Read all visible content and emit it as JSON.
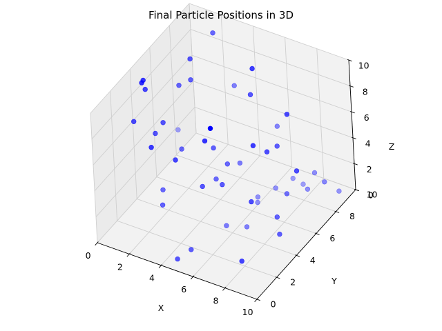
{
  "chart_data": {
    "type": "scatter",
    "title": "Final Particle Positions in 3D",
    "xlabel": "X",
    "ylabel": "Y",
    "zlabel": "Z",
    "xlim": [
      0,
      10
    ],
    "ylim": [
      0,
      10
    ],
    "zlim": [
      0,
      10
    ],
    "xticks": [
      "0",
      "2",
      "4",
      "6",
      "8",
      "10"
    ],
    "yticks": [
      "0",
      "2",
      "4",
      "6",
      "8",
      "10"
    ],
    "zticks": [
      "0",
      "2",
      "4",
      "6",
      "8",
      "10"
    ],
    "grid": true,
    "marker_color": "#0000ff",
    "points": [
      [
        0.6,
        3.2,
        6.9
      ],
      [
        0.7,
        4.3,
        8.5
      ],
      [
        0.8,
        4.0,
        9.5
      ],
      [
        0.9,
        3.7,
        9.6
      ],
      [
        1.6,
        3.7,
        6.0
      ],
      [
        1.8,
        4.2,
        6.5
      ],
      [
        2.0,
        6.8,
        9.3
      ],
      [
        1.6,
        6.2,
        7.6
      ],
      [
        2.1,
        6.6,
        7.9
      ],
      [
        2.5,
        2.8,
        2.8
      ],
      [
        2.9,
        2.1,
        2.4
      ],
      [
        3.4,
        2.8,
        5.5
      ],
      [
        2.7,
        4.5,
        4.6
      ],
      [
        1.0,
        6.8,
        3.4
      ],
      [
        2.3,
        2.2,
        6.5
      ],
      [
        3.6,
        8.5,
        6.5
      ],
      [
        4.4,
        5.0,
        5.0
      ],
      [
        4.7,
        3.3,
        3.6
      ],
      [
        4.8,
        4.5,
        3.2
      ],
      [
        5.5,
        4.0,
        3.5
      ],
      [
        2.2,
        8.8,
        9.7
      ],
      [
        5.6,
        7.3,
        9.7
      ],
      [
        6.0,
        2.4,
        9.4
      ],
      [
        4.8,
        3.6,
        6.9
      ],
      [
        5.3,
        6.1,
        3.3
      ],
      [
        6.2,
        6.3,
        0.9
      ],
      [
        5.1,
        5.2,
        3.9
      ],
      [
        6.2,
        8.5,
        4.5
      ],
      [
        7.3,
        8.1,
        1.3
      ],
      [
        5.4,
        7.3,
        7.6
      ],
      [
        6.3,
        6.1,
        0.7
      ],
      [
        5.1,
        1.3,
        0.6
      ],
      [
        5.7,
        3.9,
        0.5
      ],
      [
        7.8,
        7.1,
        7.3
      ],
      [
        7.5,
        3.7,
        3.3
      ],
      [
        7.4,
        5.6,
        5.5
      ],
      [
        9.1,
        5.8,
        4.6
      ],
      [
        9.0,
        4.0,
        1.2
      ],
      [
        8.5,
        4.6,
        1.8
      ],
      [
        6.6,
        4.5,
        0.3
      ],
      [
        4.8,
        0.4,
        0.5
      ],
      [
        8.2,
        6.1,
        2.2
      ],
      [
        8.3,
        1.3,
        1.1
      ],
      [
        9.3,
        8.1,
        1.9
      ],
      [
        9.8,
        8.7,
        0.9
      ],
      [
        7.4,
        6.6,
        5.1
      ],
      [
        6.9,
        7.0,
        1.3
      ],
      [
        7.8,
        8.3,
        0.9
      ],
      [
        8.4,
        7.8,
        1.2
      ],
      [
        8.5,
        8.4,
        2.0
      ],
      [
        7.0,
        4.9,
        6.4
      ]
    ]
  }
}
